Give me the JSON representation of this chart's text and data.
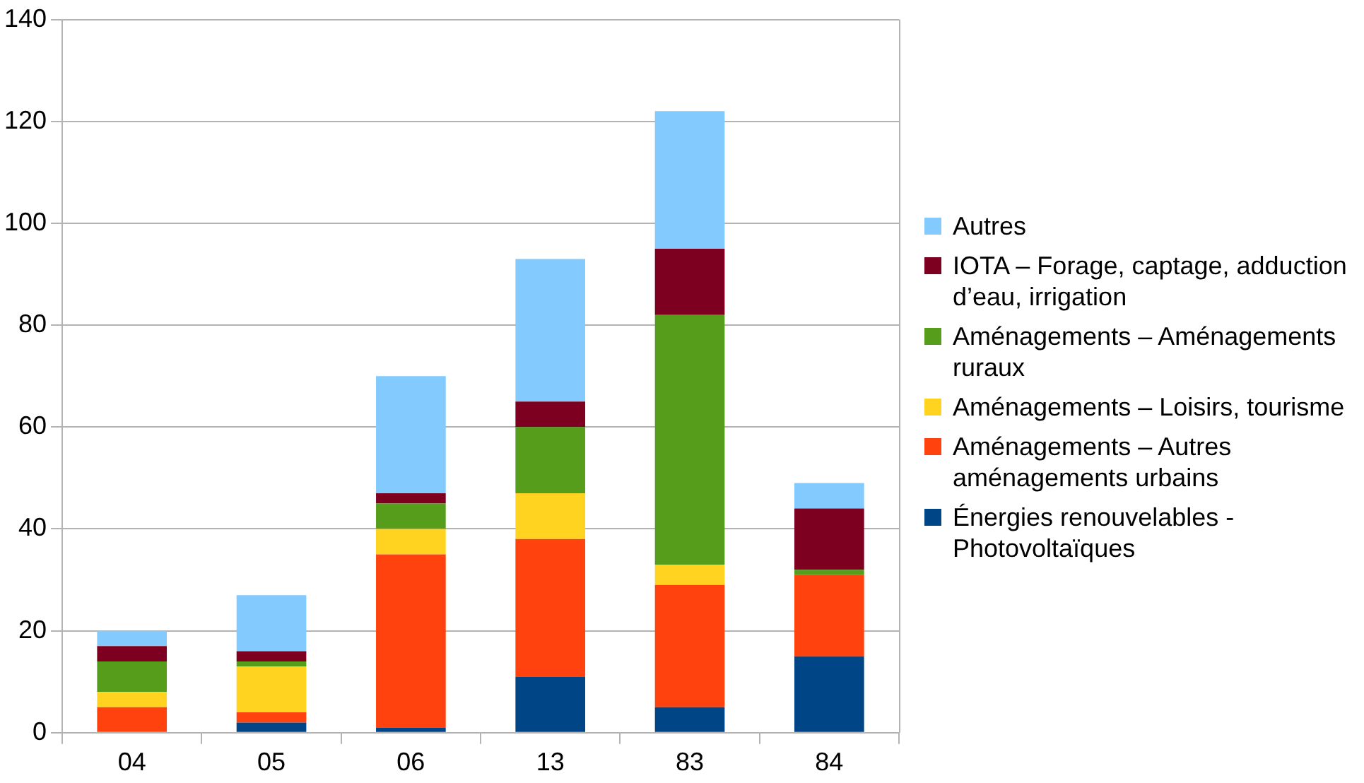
{
  "chart_data": {
    "type": "bar",
    "stacked": true,
    "categories": [
      "04",
      "05",
      "06",
      "13",
      "83",
      "84"
    ],
    "series": [
      {
        "name": "Énergies renouvelables - Photovoltaïques",
        "color": "#004586",
        "values": [
          0,
          2,
          1,
          11,
          5,
          15
        ]
      },
      {
        "name": "Aménagements – Autres aménagements urbains",
        "color": "#ff420e",
        "values": [
          5,
          2,
          34,
          27,
          24,
          16
        ]
      },
      {
        "name": "Aménagements – Loisirs, tourisme",
        "color": "#ffd320",
        "values": [
          3,
          9,
          5,
          9,
          4,
          0
        ]
      },
      {
        "name": "Aménagements – Aménagements ruraux",
        "color": "#579d1c",
        "values": [
          6,
          1,
          5,
          13,
          49,
          1
        ]
      },
      {
        "name": "IOTA – Forage, captage, adduction d’eau, irrigation",
        "color": "#7e0021",
        "values": [
          3,
          2,
          2,
          5,
          13,
          12
        ]
      },
      {
        "name": "Autres",
        "color": "#83caff",
        "values": [
          3,
          11,
          23,
          28,
          27,
          5
        ]
      }
    ],
    "ylim": [
      0,
      140
    ],
    "yticks": [
      0,
      20,
      40,
      60,
      80,
      100,
      120,
      140
    ],
    "grid": "y",
    "legend": "right"
  }
}
